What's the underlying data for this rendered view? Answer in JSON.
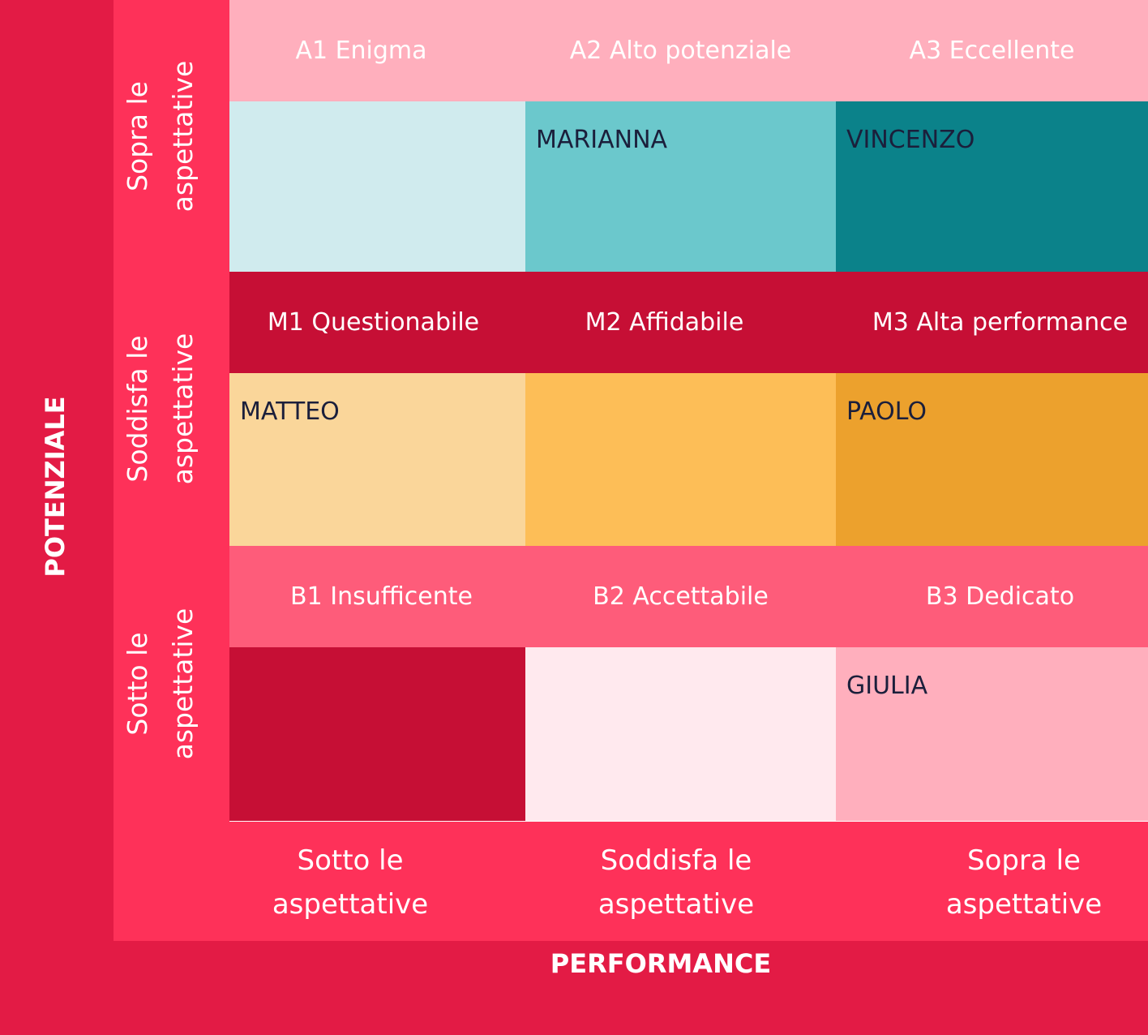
{
  "axes": {
    "y_label": "POTENZIALE",
    "x_label": "PERFORMANCE"
  },
  "row_labels": [
    "Sopra le aspettative",
    "Soddisfa le aspettative",
    "Sotto le aspettative"
  ],
  "column_labels": [
    "Sotto le aspettative",
    "Soddisfa le aspettative",
    "Sopra le aspettative"
  ],
  "rows": [
    {
      "boxes": [
        {
          "label": "A1 Enigma"
        },
        {
          "label": "A2 Alto potenziale",
          "person": "MARIANNA"
        },
        {
          "label": "A3 Eccellente",
          "person": "VINCENZO"
        }
      ]
    },
    {
      "boxes": [
        {
          "label": "M1 Questionabile",
          "person": "MATTEO"
        },
        {
          "label": "M2 Affidabile"
        },
        {
          "label": "M3 Alta performance",
          "person": "PAOLO"
        }
      ]
    },
    {
      "boxes": [
        {
          "label": "B1 Insufficente"
        },
        {
          "label": "B2 Accettabile"
        },
        {
          "label": "B3 Dedicato",
          "person": "GIULIA"
        }
      ]
    }
  ]
}
